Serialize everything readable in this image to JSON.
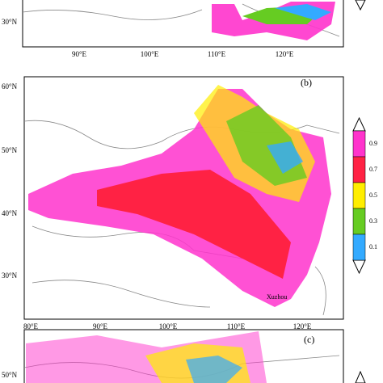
{
  "panels": [
    {
      "lat_labels": [
        "30°N"
      ],
      "lon_labels": [
        "90°E",
        "100°E",
        "110°E",
        "120°E"
      ]
    },
    {
      "label": "(b)",
      "lat_labels": [
        "60°N",
        "50°N",
        "40°N",
        "30°N"
      ],
      "lon_labels": [
        "80°E",
        "90°E",
        "100°E",
        "110°E",
        "120°E"
      ],
      "site_label": "Xuzhou"
    },
    {
      "label": "(c)",
      "lat_labels": [
        "50°N"
      ]
    }
  ],
  "colorbar": {
    "labels": [
      "0.9",
      "0.7",
      "0.5",
      "0.3",
      "0.1"
    ],
    "colors": [
      "#ff33cc",
      "#ff2244",
      "#ffee00",
      "#66cc22",
      "#33aaff"
    ]
  }
}
